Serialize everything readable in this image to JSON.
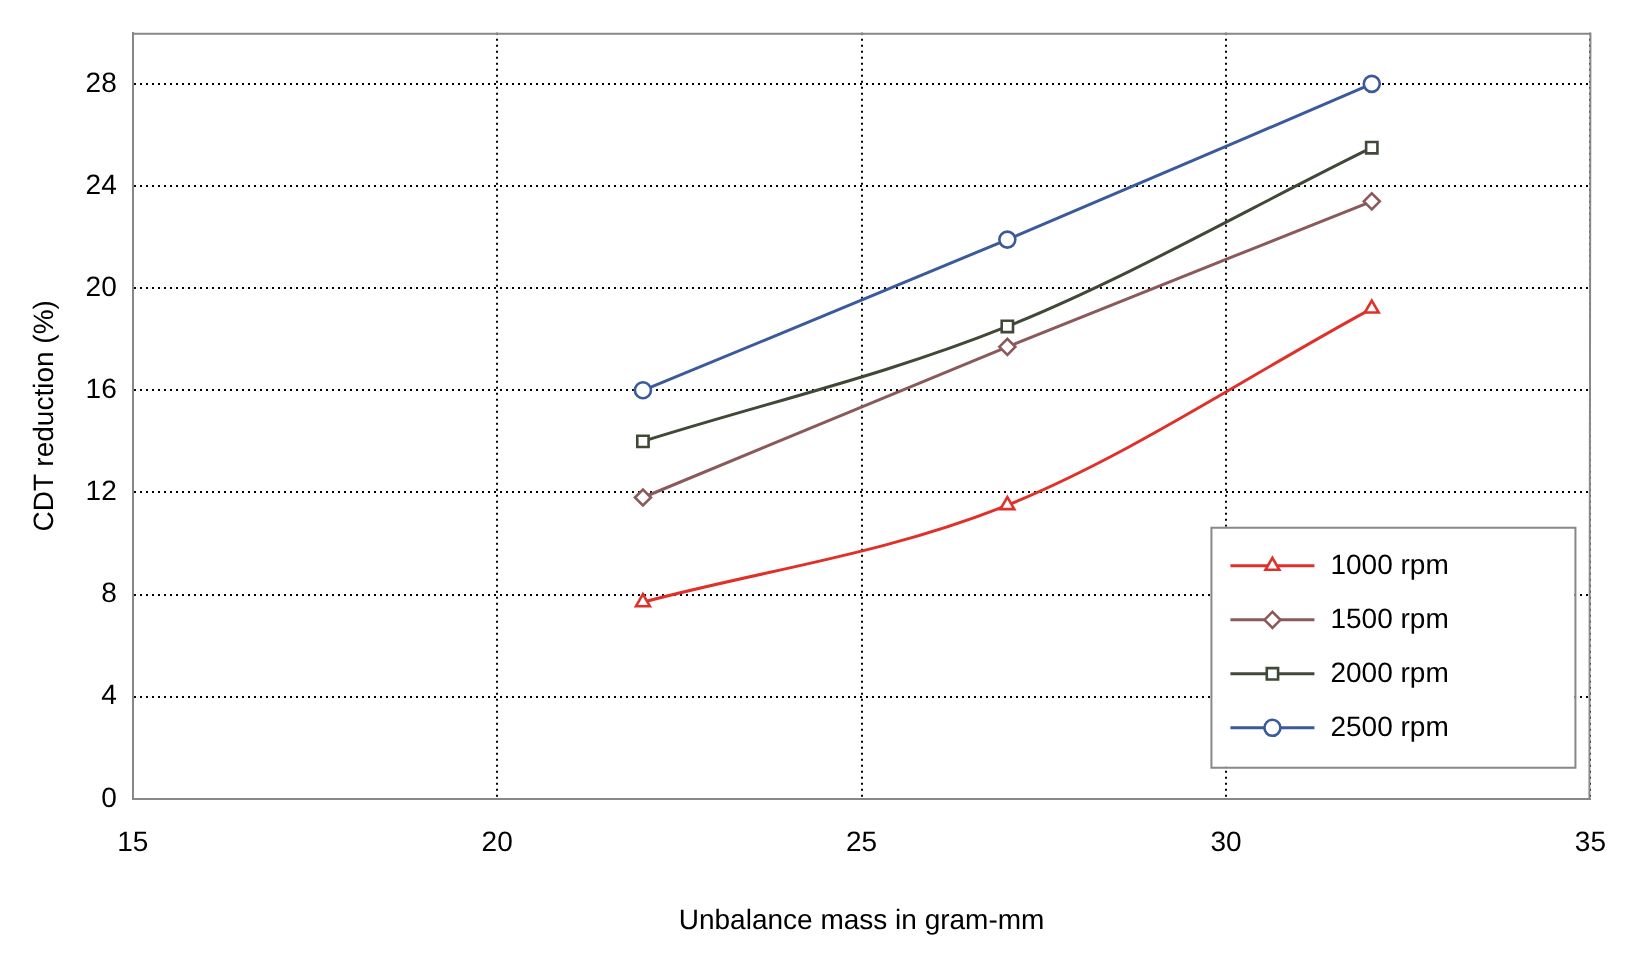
{
  "chart_data": {
    "type": "line",
    "xlabel": "Unbalance mass in gram-mm",
    "ylabel": "CDT reduction (%)",
    "x": [
      22,
      27,
      32
    ],
    "series": [
      {
        "name": "1000 rpm",
        "color": "#e0302a",
        "marker": "triangle",
        "values": [
          7.7,
          11.5,
          19.2
        ]
      },
      {
        "name": "1500 rpm",
        "color": "#8a5a5a",
        "marker": "diamond",
        "values": [
          11.8,
          17.7,
          23.4
        ]
      },
      {
        "name": "2000 rpm",
        "color": "#404838",
        "marker": "square",
        "values": [
          14,
          18.5,
          25.5
        ]
      },
      {
        "name": "2500 rpm",
        "color": "#3a5a9a",
        "marker": "circle",
        "values": [
          16,
          21.9,
          28
        ]
      }
    ],
    "xlim": [
      15,
      35
    ],
    "xticks": [
      15,
      20,
      25,
      30,
      35
    ],
    "ylim": [
      0,
      30
    ],
    "yticks": [
      0,
      4,
      8,
      12,
      16,
      20,
      24,
      28
    ],
    "grid": true,
    "legend": "bottom right",
    "line_style": "solid"
  }
}
